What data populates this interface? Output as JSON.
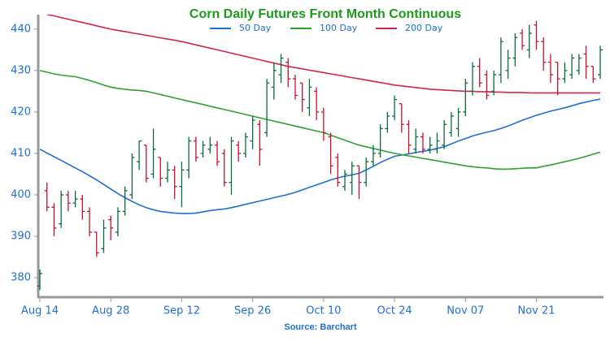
{
  "chart_data": {
    "type": "ohlc",
    "title": "Corn Daily Futures Front Month Continuous",
    "source": "Source: Barchart",
    "categories": [
      "Aug 14",
      null,
      null,
      null,
      null,
      null,
      null,
      null,
      null,
      null,
      "Aug 28",
      null,
      null,
      null,
      null,
      null,
      null,
      null,
      null,
      null,
      "Sep 12",
      null,
      null,
      null,
      null,
      null,
      null,
      null,
      null,
      null,
      "Sep 26",
      null,
      null,
      null,
      null,
      null,
      null,
      null,
      null,
      null,
      "Oct 10",
      null,
      null,
      null,
      null,
      null,
      null,
      null,
      null,
      null,
      "Oct 24",
      null,
      null,
      null,
      null,
      null,
      null,
      null,
      null,
      null,
      "Nov 07",
      null,
      null,
      null,
      null,
      null,
      null,
      null,
      null,
      null,
      "Nov 21",
      null,
      null,
      null,
      null,
      null,
      null,
      null,
      null,
      null
    ],
    "ohlc": {
      "up_color": "#0b6b3e",
      "down_color": "#c8102e",
      "open": [
        378,
        401,
        397,
        393,
        400,
        398,
        399,
        396,
        391,
        387,
        394,
        391,
        396,
        400,
        408,
        412,
        405,
        409,
        404,
        406,
        402,
        406,
        413,
        410,
        411,
        412,
        410,
        403,
        412,
        410,
        413,
        417,
        415,
        426,
        429,
        432,
        428,
        427,
        421,
        425,
        420,
        414,
        409,
        402,
        403,
        407,
        403,
        408,
        410,
        416,
        419,
        422,
        417,
        411,
        414,
        411,
        411,
        412,
        415,
        416,
        420,
        425,
        431,
        429,
        425,
        429,
        430,
        433,
        439,
        435,
        441,
        437,
        432,
        432,
        428,
        429,
        430,
        434,
        431,
        429
      ],
      "high": [
        382,
        403,
        398,
        401,
        401,
        401,
        400,
        397,
        391,
        394,
        395,
        397,
        402,
        410,
        413,
        412,
        416,
        409,
        408,
        407,
        408,
        414,
        414,
        413,
        414,
        413,
        411,
        414,
        413,
        415,
        419,
        418,
        428,
        432,
        434,
        433,
        429,
        427,
        428,
        426,
        421,
        415,
        410,
        406,
        408,
        407,
        409,
        412,
        417,
        420,
        424,
        422,
        418,
        416,
        415,
        414,
        415,
        418,
        420,
        421,
        428,
        432,
        433,
        430,
        430,
        438,
        435,
        439,
        440,
        441,
        442,
        438,
        434,
        432,
        432,
        434,
        434,
        436,
        431,
        436
      ],
      "low": [
        377,
        396,
        390,
        392,
        396,
        397,
        394,
        390,
        385,
        386,
        389,
        390,
        395,
        399,
        406,
        403,
        404,
        402,
        403,
        399,
        397,
        404,
        408,
        409,
        410,
        407,
        402,
        400,
        408,
        409,
        411,
        407,
        414,
        423,
        427,
        426,
        423,
        420,
        419,
        418,
        413,
        405,
        402,
        401,
        400,
        399,
        402,
        407,
        409,
        415,
        418,
        415,
        410,
        410,
        410,
        410,
        410,
        411,
        414,
        414,
        419,
        424,
        426,
        423,
        424,
        427,
        428,
        431,
        435,
        433,
        435,
        430,
        427,
        424,
        427,
        428,
        429,
        428,
        427,
        428
      ],
      "close": [
        381,
        397,
        392,
        400,
        398,
        399,
        396,
        391,
        386,
        392,
        392,
        396,
        401,
        409,
        413,
        404,
        411,
        404,
        406,
        402,
        406,
        413,
        409,
        412,
        412,
        408,
        403,
        413,
        410,
        414,
        418,
        411,
        427,
        430,
        433,
        428,
        424,
        423,
        426,
        420,
        415,
        407,
        403,
        405,
        407,
        403,
        408,
        410,
        416,
        419,
        423,
        417,
        412,
        414,
        411,
        412,
        413,
        417,
        419,
        420,
        427,
        431,
        427,
        424,
        429,
        437,
        433,
        438,
        436,
        439,
        437,
        432,
        429,
        428,
        430,
        433,
        433,
        431,
        428,
        435
      ]
    },
    "series": [
      {
        "name": "50 Day",
        "color": "#1f6fd6",
        "values": [
          411,
          410.1,
          409.2,
          408.3,
          407.4,
          406.5,
          405.6,
          404.6,
          403.6,
          402.5,
          401.4,
          400.3,
          399.3,
          398.4,
          397.6,
          396.9,
          396.4,
          396.0,
          395.8,
          395.6,
          395.5,
          395.5,
          395.6,
          395.9,
          396.2,
          396.4,
          396.6,
          396.9,
          397.3,
          397.7,
          398.1,
          398.5,
          398.9,
          399.3,
          399.7,
          400.1,
          400.6,
          401.2,
          401.8,
          402.4,
          403.0,
          403.6,
          404.1,
          404.5,
          404.8,
          405.2,
          406.0,
          406.9,
          407.8,
          408.6,
          409.3,
          409.6,
          409.9,
          410.2,
          410.5,
          410.8,
          411.2,
          411.6,
          412.3,
          413.0,
          413.6,
          414.2,
          414.7,
          415.1,
          415.5,
          416.0,
          416.6,
          417.3,
          418.0,
          418.6,
          419.2,
          419.7,
          420.2,
          420.6,
          421.0,
          421.5,
          422.0,
          422.4,
          422.8,
          423.1
        ]
      },
      {
        "name": "100 Day",
        "color": "#2ea12e",
        "values": [
          430,
          429.6,
          429.2,
          428.9,
          428.7,
          428.5,
          428.1,
          427.6,
          427.1,
          426.5,
          426,
          425.7,
          425.5,
          425.3,
          425.2,
          425,
          424.6,
          424.2,
          423.8,
          423.4,
          423,
          422.6,
          422.2,
          421.8,
          421.4,
          421,
          420.6,
          420.2,
          419.8,
          419.4,
          419,
          418.6,
          418.2,
          417.8,
          417.4,
          417,
          416.6,
          416.2,
          415.8,
          415.4,
          415,
          414.4,
          413.8,
          413.2,
          412.6,
          412,
          411.6,
          411.2,
          410.8,
          410.4,
          410,
          409.7,
          409.4,
          409.1,
          408.8,
          408.5,
          408.2,
          407.9,
          407.6,
          407.3,
          407,
          406.8,
          406.6,
          406.5,
          406.3,
          406.2,
          406.2,
          406.3,
          406.4,
          406.5,
          406.5,
          406.9,
          407.2,
          407.6,
          408,
          408.4,
          408.8,
          409.3,
          409.8,
          410.3
        ]
      },
      {
        "name": "200 Day",
        "color": "#d2264a",
        "values": [
          null,
          443.5,
          443.2,
          442.8,
          442.4,
          442,
          441.6,
          441.2,
          440.8,
          440.4,
          440,
          439.7,
          439.4,
          439.1,
          438.8,
          438.5,
          438.2,
          437.9,
          437.6,
          437.3,
          437,
          436.6,
          436.2,
          435.8,
          435.4,
          435,
          434.6,
          434.2,
          433.8,
          433.4,
          433,
          432.6,
          432.2,
          431.8,
          431.4,
          431,
          430.7,
          430.4,
          430.1,
          429.8,
          429.5,
          429.2,
          428.9,
          428.6,
          428.3,
          428,
          427.7,
          427.4,
          427.1,
          426.8,
          426.5,
          426.3,
          426.1,
          425.9,
          425.7,
          425.5,
          425.4,
          425.3,
          425.2,
          425.1,
          425,
          425,
          424.9,
          424.9,
          424.8,
          424.8,
          424.7,
          424.7,
          424.7,
          424.6,
          424.6,
          424.6,
          424.6,
          424.6,
          424.6,
          424.6,
          424.6,
          424.6,
          424.6,
          424.6
        ]
      }
    ],
    "ylim": [
      375.5,
      443.5
    ],
    "yticks": [
      380,
      390,
      400,
      410,
      420,
      430,
      440
    ],
    "grid": false
  }
}
